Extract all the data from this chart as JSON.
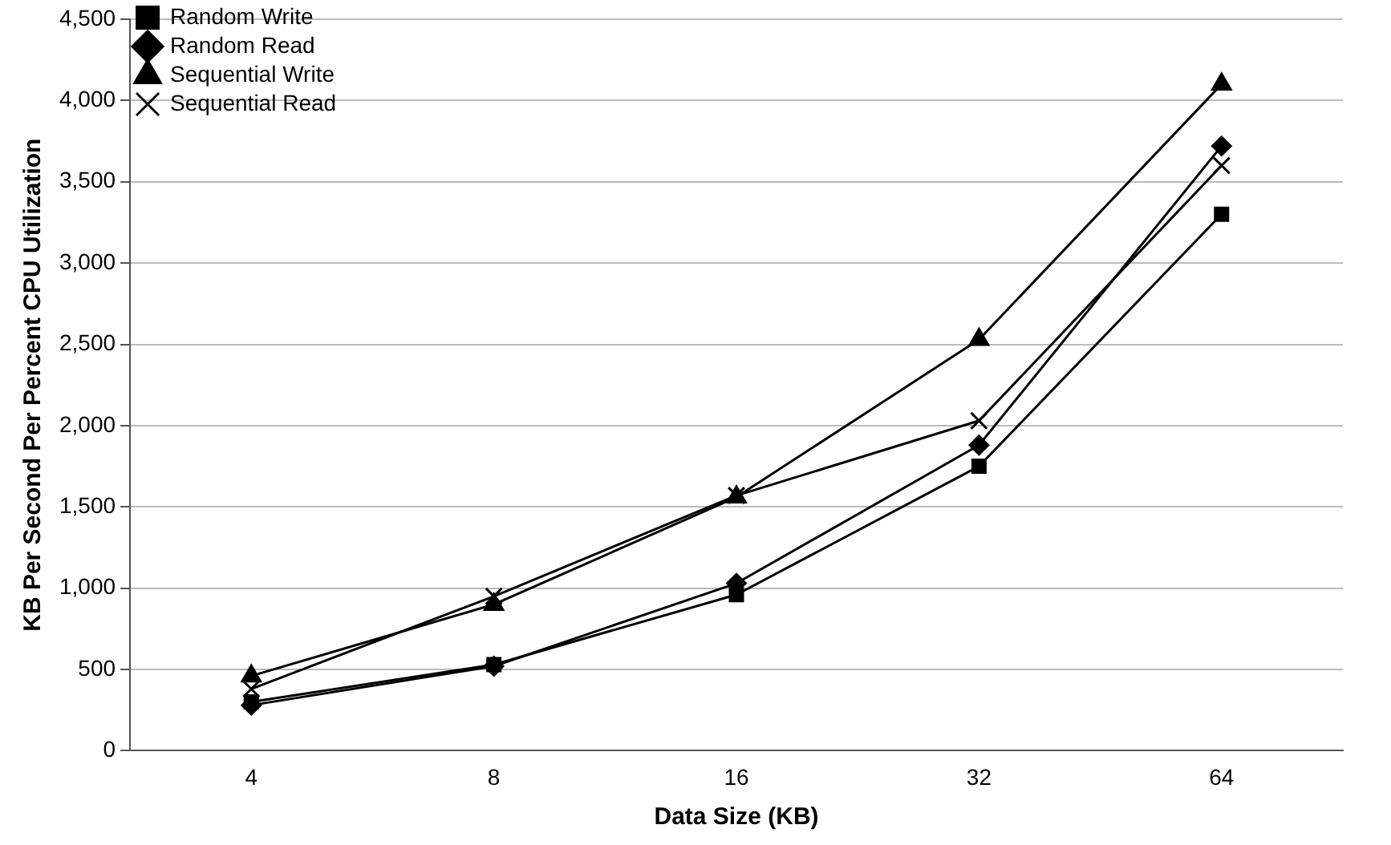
{
  "chart_data": {
    "type": "line",
    "xlabel": "Data Size (KB)",
    "ylabel": "KB Per Second Per Percent CPU Utilization",
    "categories": [
      "4",
      "8",
      "16",
      "32",
      "64"
    ],
    "series": [
      {
        "name": "Random Write",
        "color": "#000000",
        "marker": "square",
        "values": [
          300,
          530,
          960,
          1750,
          3300
        ]
      },
      {
        "name": "Random Read",
        "color": "#000000",
        "marker": "diamond",
        "values": [
          280,
          520,
          1030,
          1880,
          3720
        ]
      },
      {
        "name": "Sequential Write",
        "color": "#000000",
        "marker": "triangle",
        "values": [
          460,
          900,
          1560,
          2530,
          4100
        ]
      },
      {
        "name": "Sequential Read",
        "color": "#000000",
        "marker": "cross",
        "values": [
          380,
          950,
          1570,
          2030,
          3600
        ]
      }
    ],
    "ylim": [
      0,
      4500
    ],
    "yticks": [
      {
        "value": 0,
        "label": "0"
      },
      {
        "value": 500,
        "label": "500"
      },
      {
        "value": 1000,
        "label": "1,000"
      },
      {
        "value": 1500,
        "label": "1,500"
      },
      {
        "value": 2000,
        "label": "2,000"
      },
      {
        "value": 2500,
        "label": "2,500"
      },
      {
        "value": 3000,
        "label": "3,000"
      },
      {
        "value": 3500,
        "label": "3,500"
      },
      {
        "value": 4000,
        "label": "4,000"
      },
      {
        "value": 4500,
        "label": "4,500"
      }
    ],
    "grid": "y",
    "legend": "top left",
    "line_style": "solid"
  }
}
